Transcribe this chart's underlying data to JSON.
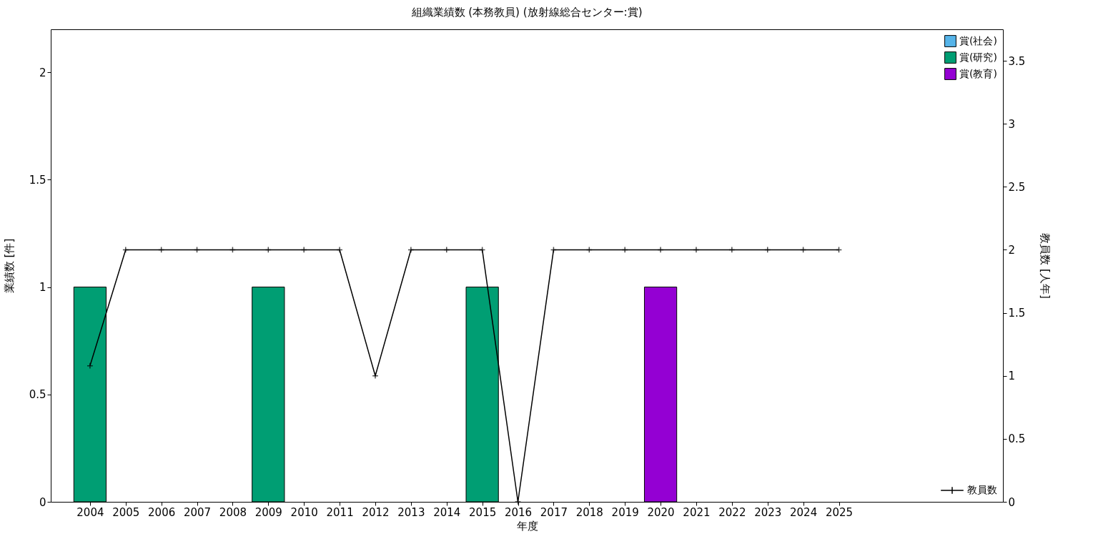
{
  "chart_data": {
    "type": "bar",
    "title": "組織業績数 (本務教員) (放射線総合センター:賞)",
    "xlabel": "年度",
    "ylabel": "業績数 [件]",
    "y2label": "教員数 [人年]",
    "x": [
      2004,
      2005,
      2006,
      2007,
      2008,
      2009,
      2010,
      2011,
      2012,
      2013,
      2014,
      2015,
      2016,
      2017,
      2018,
      2019,
      2020,
      2021,
      2022,
      2023,
      2024,
      2025
    ],
    "stacked": true,
    "grid": false,
    "legend": "top right",
    "xlim": [
      2003,
      2029.5
    ],
    "xticks": [
      2004,
      2005,
      2006,
      2007,
      2008,
      2009,
      2010,
      2011,
      2012,
      2013,
      2014,
      2015,
      2016,
      2017,
      2018,
      2019,
      2020,
      2021,
      2022,
      2023,
      2024,
      2025
    ],
    "ylim": [
      0,
      2.2
    ],
    "yticks": [
      0,
      0.5,
      1,
      1.5,
      2
    ],
    "y2lim": [
      0,
      3.75
    ],
    "y2ticks": [
      0,
      0.5,
      1,
      1.5,
      2,
      2.5,
      3,
      3.5
    ],
    "series": [
      {
        "name": "賞(社会)",
        "color": "#56b4e9",
        "values": [
          0,
          0,
          0,
          0,
          0,
          0,
          0,
          0,
          0,
          0,
          0,
          0,
          0,
          0,
          0,
          0,
          0,
          0,
          0,
          0,
          0,
          0
        ]
      },
      {
        "name": "賞(研究)",
        "color": "#009e73",
        "values": [
          1,
          0,
          0,
          0,
          0,
          1,
          0,
          0,
          0,
          0,
          0,
          1,
          0,
          0,
          0,
          0,
          0,
          0,
          0,
          0,
          0,
          0
        ]
      },
      {
        "name": "賞(教育)",
        "color": "#9400d3",
        "values": [
          0,
          0,
          0,
          0,
          0,
          0,
          0,
          0,
          0,
          0,
          0,
          0,
          0,
          0,
          0,
          0,
          1,
          0,
          0,
          0,
          0,
          0
        ]
      },
      {
        "name": "教員数",
        "color": "#000000",
        "type": "line",
        "axis": "y2",
        "marker": "cross",
        "values": [
          1.08,
          2,
          2,
          2,
          2,
          2,
          2,
          2,
          1,
          2,
          2,
          2,
          0,
          2,
          2,
          2,
          2,
          2,
          2,
          2,
          2,
          2
        ]
      }
    ]
  }
}
